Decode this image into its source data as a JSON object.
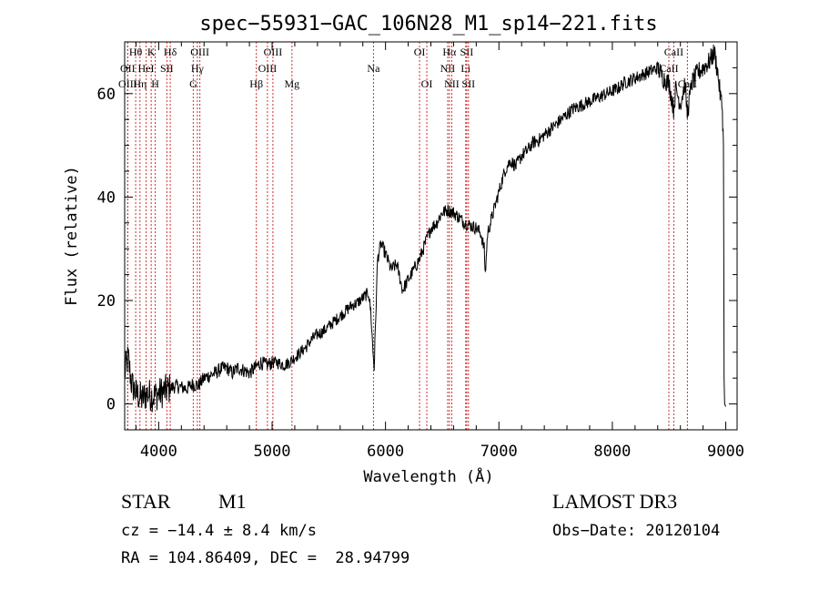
{
  "chart_data": {
    "type": "line",
    "title": "spec−55931−GAC_106N28_M1_sp14−221.fits",
    "xlabel": "Wavelength (Å)",
    "ylabel": "Flux (relative)",
    "xlim": [
      3700,
      9100
    ],
    "ylim": [
      -5,
      70
    ],
    "xticks": [
      4000,
      5000,
      6000,
      7000,
      8000,
      9000
    ],
    "yticks": [
      0,
      20,
      40,
      60
    ],
    "xtick_labels": [
      "4000",
      "5000",
      "6000",
      "7000",
      "8000",
      "9000"
    ],
    "ytick_labels": [
      "0",
      "20",
      "40",
      "60"
    ],
    "grid": false,
    "series": [
      {
        "name": "flux",
        "anchors": [
          [
            3700,
            6
          ],
          [
            3730,
            9
          ],
          [
            3760,
            4
          ],
          [
            3800,
            2
          ],
          [
            3850,
            1
          ],
          [
            3900,
            2
          ],
          [
            3950,
            1.5
          ],
          [
            4000,
            2
          ],
          [
            4050,
            2.5
          ],
          [
            4100,
            3
          ],
          [
            4150,
            3.5
          ],
          [
            4200,
            3.2
          ],
          [
            4250,
            3
          ],
          [
            4300,
            3.8
          ],
          [
            4350,
            3.5
          ],
          [
            4400,
            5
          ],
          [
            4450,
            5.5
          ],
          [
            4500,
            6
          ],
          [
            4550,
            6.8
          ],
          [
            4600,
            7
          ],
          [
            4650,
            6
          ],
          [
            4700,
            7
          ],
          [
            4750,
            6.5
          ],
          [
            4800,
            6
          ],
          [
            4850,
            7
          ],
          [
            4900,
            8
          ],
          [
            4950,
            7.5
          ],
          [
            5000,
            8
          ],
          [
            5050,
            8
          ],
          [
            5100,
            7.5
          ],
          [
            5150,
            8
          ],
          [
            5200,
            9
          ],
          [
            5250,
            10
          ],
          [
            5300,
            11
          ],
          [
            5350,
            12.5
          ],
          [
            5400,
            13.5
          ],
          [
            5450,
            14
          ],
          [
            5500,
            15
          ],
          [
            5550,
            16
          ],
          [
            5600,
            17
          ],
          [
            5650,
            18
          ],
          [
            5700,
            19
          ],
          [
            5750,
            19.5
          ],
          [
            5800,
            20.5
          ],
          [
            5850,
            21.5
          ],
          [
            5870,
            18
          ],
          [
            5890,
            10
          ],
          [
            5900,
            7
          ],
          [
            5910,
            14
          ],
          [
            5930,
            28
          ],
          [
            5960,
            31
          ],
          [
            6000,
            29
          ],
          [
            6050,
            26
          ],
          [
            6100,
            27
          ],
          [
            6150,
            22
          ],
          [
            6200,
            24
          ],
          [
            6250,
            26
          ],
          [
            6300,
            28
          ],
          [
            6350,
            31
          ],
          [
            6400,
            34
          ],
          [
            6450,
            35
          ],
          [
            6500,
            37
          ],
          [
            6550,
            37.5
          ],
          [
            6600,
            37
          ],
          [
            6650,
            36
          ],
          [
            6700,
            35
          ],
          [
            6750,
            34.5
          ],
          [
            6800,
            34
          ],
          [
            6840,
            33
          ],
          [
            6870,
            30
          ],
          [
            6880,
            25
          ],
          [
            6900,
            33
          ],
          [
            6950,
            37
          ],
          [
            7000,
            41
          ],
          [
            7050,
            45
          ],
          [
            7100,
            47
          ],
          [
            7150,
            46
          ],
          [
            7200,
            48
          ],
          [
            7250,
            49
          ],
          [
            7300,
            50.5
          ],
          [
            7350,
            51
          ],
          [
            7400,
            52
          ],
          [
            7450,
            53
          ],
          [
            7500,
            54
          ],
          [
            7550,
            55
          ],
          [
            7600,
            56
          ],
          [
            7650,
            57
          ],
          [
            7700,
            57.5
          ],
          [
            7750,
            58
          ],
          [
            7800,
            58.5
          ],
          [
            7850,
            59
          ],
          [
            7900,
            59.5
          ],
          [
            7950,
            60
          ],
          [
            8000,
            60.5
          ],
          [
            8050,
            61
          ],
          [
            8100,
            62
          ],
          [
            8150,
            62.5
          ],
          [
            8200,
            63
          ],
          [
            8250,
            63.5
          ],
          [
            8300,
            64
          ],
          [
            8350,
            64.5
          ],
          [
            8400,
            65
          ],
          [
            8450,
            63
          ],
          [
            8500,
            62
          ],
          [
            8540,
            57
          ],
          [
            8560,
            61
          ],
          [
            8600,
            58
          ],
          [
            8640,
            62
          ],
          [
            8660,
            56
          ],
          [
            8700,
            62
          ],
          [
            8750,
            64
          ],
          [
            8800,
            65
          ],
          [
            8850,
            66
          ],
          [
            8900,
            68
          ],
          [
            8930,
            64
          ],
          [
            8950,
            60
          ],
          [
            8970,
            57
          ],
          [
            8980,
            50
          ],
          [
            8985,
            5
          ],
          [
            8990,
            0
          ],
          [
            9000,
            -0.5
          ]
        ]
      }
    ],
    "line_markers": [
      {
        "label": "Hθ",
        "wave": 3797,
        "row": 0
      },
      {
        "label": "OII",
        "wave": 3727,
        "row": 1
      },
      {
        "label": "OIII",
        "wave": 3727,
        "row": 2
      },
      {
        "label": "Hη",
        "wave": 3835,
        "row": 2
      },
      {
        "label": "HeI",
        "wave": 3889,
        "row": 1
      },
      {
        "label": "K",
        "wave": 3934,
        "row": 0
      },
      {
        "label": "H",
        "wave": 3969,
        "row": 2
      },
      {
        "label": "SII",
        "wave": 4072,
        "row": 1
      },
      {
        "label": "Hδ",
        "wave": 4102,
        "row": 0
      },
      {
        "label": "G",
        "wave": 4305,
        "row": 2
      },
      {
        "label": "Hγ",
        "wave": 4341,
        "row": 1
      },
      {
        "label": "OIII",
        "wave": 4363,
        "row": 0
      },
      {
        "label": "Hβ",
        "wave": 4861,
        "row": 2
      },
      {
        "label": "OIII",
        "wave": 4959,
        "row": 1
      },
      {
        "label": "OIII",
        "wave": 5007,
        "row": 0
      },
      {
        "label": "Mg",
        "wave": 5175,
        "row": 2
      },
      {
        "label": "Na",
        "wave": 5894,
        "row": 1
      },
      {
        "label": "OI",
        "wave": 6300,
        "row": 0
      },
      {
        "label": "OI",
        "wave": 6364,
        "row": 2
      },
      {
        "label": "NII",
        "wave": 6548,
        "row": 1
      },
      {
        "label": "Hα",
        "wave": 6563,
        "row": 0
      },
      {
        "label": "NII",
        "wave": 6584,
        "row": 2
      },
      {
        "label": "Li",
        "wave": 6707,
        "row": 1
      },
      {
        "label": "SII",
        "wave": 6716,
        "row": 0
      },
      {
        "label": "SII",
        "wave": 6731,
        "row": 2
      },
      {
        "label": "CaII",
        "wave": 8498,
        "row": 1
      },
      {
        "label": "CaII",
        "wave": 8542,
        "row": 0
      },
      {
        "label": "CaII",
        "wave": 8662,
        "row": 2
      }
    ]
  },
  "info": {
    "object_class": "STAR",
    "subclass": "M1",
    "survey": "LAMOST DR3",
    "cz_text": "cz = −14.4 ± 8.4 km/s",
    "obs_date_text": "Obs−Date: 20120104",
    "radec_text": "RA = 104.86409, DEC =  28.94799"
  },
  "colors": {
    "spectrum": "#000000",
    "marker_line": "#d03030",
    "text": "#000000"
  }
}
